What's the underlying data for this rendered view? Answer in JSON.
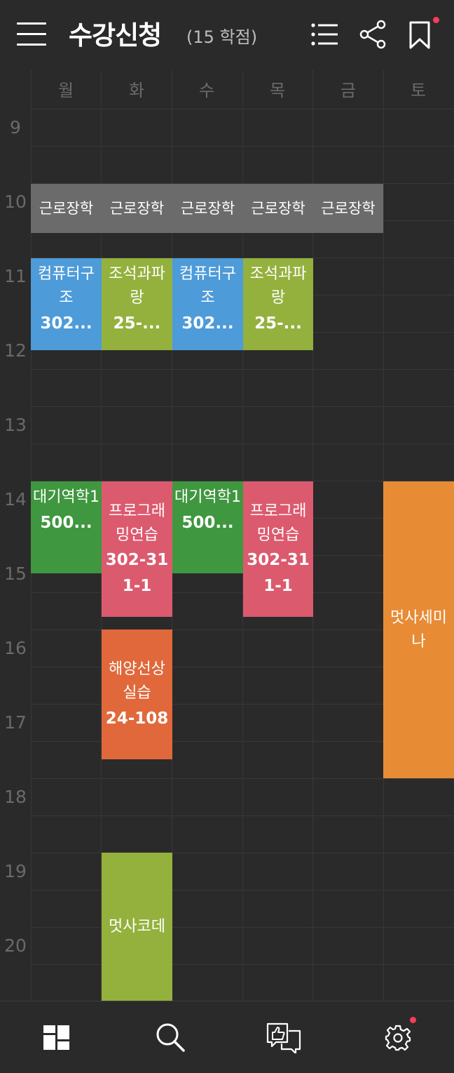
{
  "header": {
    "title": "수강신청",
    "credits": "(15 학점)",
    "notification_color": "#ff3b5c"
  },
  "days": [
    "월",
    "화",
    "수",
    "목",
    "금",
    "토"
  ],
  "hours": [
    "9",
    "10",
    "11",
    "12",
    "13",
    "14",
    "15",
    "16",
    "17",
    "18",
    "19",
    "20"
  ],
  "courses": {
    "work_mon": {
      "name": "근로장학",
      "day": "월",
      "color": "#6b6b6b"
    },
    "work_tue": {
      "name": "근로장학",
      "day": "화",
      "color": "#6b6b6b"
    },
    "work_wed": {
      "name": "근로장학",
      "day": "수",
      "color": "#6b6b6b"
    },
    "work_thu": {
      "name": "근로장학",
      "day": "목",
      "color": "#6b6b6b"
    },
    "work_fri": {
      "name": "근로장학",
      "day": "금",
      "color": "#6b6b6b"
    },
    "comp_mon": {
      "name": "컴퓨터구조",
      "room": "302...",
      "day": "월",
      "color": "#4e9bd9"
    },
    "tide_tue": {
      "name": "조석과파랑",
      "room": "25-...",
      "day": "화",
      "color": "#94b13d"
    },
    "comp_wed": {
      "name": "컴퓨터구조",
      "room": "302...",
      "day": "수",
      "color": "#4e9bd9"
    },
    "tide_thu": {
      "name": "조석과파랑",
      "room": "25-...",
      "day": "목",
      "color": "#94b13d"
    },
    "atmo_mon": {
      "name": "대기역학1",
      "room": "500...",
      "day": "월",
      "color": "#3f973f"
    },
    "prog_tue": {
      "name": "프로그래밍연습",
      "room": "302-311-1",
      "day": "화",
      "color": "#dc5a6e"
    },
    "atmo_wed": {
      "name": "대기역학1",
      "room": "500...",
      "day": "수",
      "color": "#3f973f"
    },
    "prog_thu": {
      "name": "프로그래밍연습",
      "room": "302-311-1",
      "day": "목",
      "color": "#dc5a6e"
    },
    "ship_tue": {
      "name": "해양선상실습",
      "room": "24-108",
      "day": "화",
      "color": "#e0683a"
    },
    "seminar_sat": {
      "name": "멋사세미나",
      "day": "토",
      "color": "#e88b35"
    },
    "code_tue": {
      "name": "멋사코데",
      "day": "화",
      "color": "#94b13d"
    }
  }
}
